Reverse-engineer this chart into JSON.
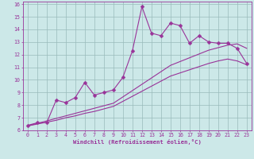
{
  "xlabel": "Windchill (Refroidissement éolien,°C)",
  "bg_color": "#cce8e8",
  "line_color": "#993399",
  "grid_color": "#99bbbb",
  "xlim": [
    -0.5,
    23.5
  ],
  "ylim": [
    6,
    16.2
  ],
  "xticks": [
    0,
    1,
    2,
    3,
    4,
    5,
    6,
    7,
    8,
    9,
    10,
    11,
    12,
    13,
    14,
    15,
    16,
    17,
    18,
    19,
    20,
    21,
    22,
    23
  ],
  "yticks": [
    6,
    7,
    8,
    9,
    10,
    11,
    12,
    13,
    14,
    15,
    16
  ],
  "line1_x": [
    0,
    1,
    2,
    3,
    4,
    5,
    6,
    7,
    8,
    9,
    10,
    11,
    12,
    13,
    14,
    15,
    16,
    17,
    18,
    19,
    20,
    21,
    22,
    23
  ],
  "line1_y": [
    6.4,
    6.6,
    6.6,
    8.4,
    8.2,
    8.6,
    9.8,
    8.8,
    9.0,
    9.2,
    10.2,
    12.3,
    15.8,
    13.7,
    13.5,
    14.5,
    14.3,
    12.9,
    13.5,
    13.0,
    12.9,
    12.9,
    12.5,
    11.3
  ],
  "line2_x": [
    0,
    1,
    2,
    3,
    4,
    5,
    6,
    7,
    8,
    9,
    10,
    11,
    12,
    13,
    14,
    15,
    16,
    17,
    18,
    19,
    20,
    21,
    22,
    23
  ],
  "line2_y": [
    6.35,
    6.55,
    6.75,
    6.95,
    7.15,
    7.35,
    7.55,
    7.75,
    7.95,
    8.15,
    8.65,
    9.15,
    9.65,
    10.15,
    10.65,
    11.15,
    11.45,
    11.75,
    12.05,
    12.35,
    12.55,
    12.75,
    12.85,
    12.5
  ],
  "line3_x": [
    0,
    1,
    2,
    3,
    4,
    5,
    6,
    7,
    8,
    9,
    10,
    11,
    12,
    13,
    14,
    15,
    16,
    17,
    18,
    19,
    20,
    21,
    22,
    23
  ],
  "line3_y": [
    6.35,
    6.5,
    6.65,
    6.8,
    7.0,
    7.15,
    7.35,
    7.5,
    7.7,
    7.9,
    8.3,
    8.7,
    9.1,
    9.5,
    9.9,
    10.3,
    10.55,
    10.8,
    11.05,
    11.3,
    11.5,
    11.65,
    11.5,
    11.2
  ],
  "marker": "D",
  "markersize": 2.5,
  "linewidth": 0.8,
  "tick_fontsize": 4.8,
  "xlabel_fontsize": 5.2
}
